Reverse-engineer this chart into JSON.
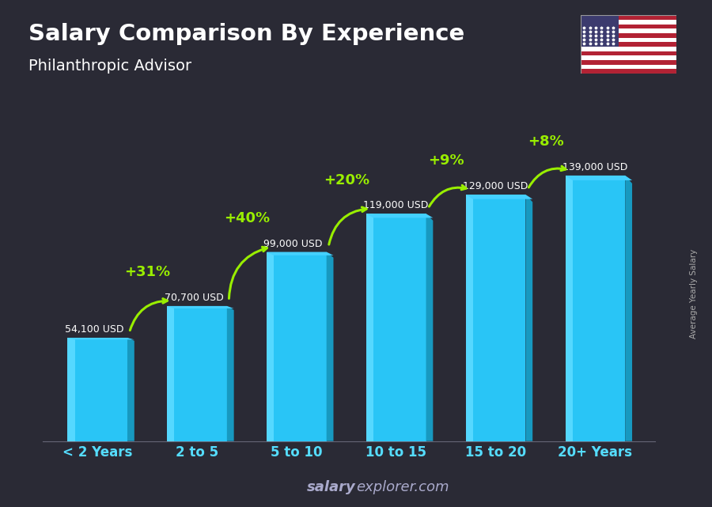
{
  "title": "Salary Comparison By Experience",
  "subtitle": "Philanthropic Advisor",
  "categories": [
    "< 2 Years",
    "2 to 5",
    "5 to 10",
    "10 to 15",
    "15 to 20",
    "20+ Years"
  ],
  "values": [
    54100,
    70700,
    99000,
    119000,
    129000,
    139000
  ],
  "salary_labels": [
    "54,100 USD",
    "70,700 USD",
    "99,000 USD",
    "119,000 USD",
    "129,000 USD",
    "139,000 USD"
  ],
  "pct_labels": [
    null,
    "+31%",
    "+40%",
    "+20%",
    "+9%",
    "+8%"
  ],
  "bar_color_face": "#29c5f6",
  "bar_color_left": "#55d8ff",
  "bar_color_right": "#1799c0",
  "bar_color_top": "#44d0ff",
  "bg_color": "#2a2a35",
  "title_color": "#ffffff",
  "subtitle_color": "#ffffff",
  "salary_label_color": "#ffffff",
  "pct_color": "#99ee00",
  "xlabel_color": "#55ddff",
  "watermark_bold": "salary",
  "watermark_normal": "explorer.com",
  "ylabel_text": "Average Yearly Salary",
  "figsize": [
    9.0,
    6.41
  ],
  "dpi": 100
}
